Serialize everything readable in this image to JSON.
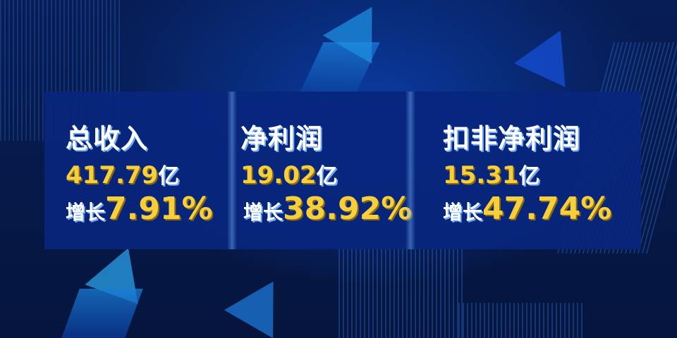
{
  "metrics": [
    {
      "title": "总收入",
      "value": "417.79",
      "unit": "亿",
      "growth_label": "增长",
      "growth": "7.91%"
    },
    {
      "title": "净利润",
      "value": "19.02",
      "unit": "亿",
      "growth_label": "增长",
      "growth": "38.92%"
    },
    {
      "title": "扣非净利润",
      "value": "15.31",
      "unit": "亿",
      "growth_label": "增长",
      "growth": "47.74%"
    }
  ],
  "colors": {
    "background": "#061a4a",
    "panel": "#08267d",
    "value": "#f7cf3c",
    "text": "#ffffff"
  }
}
